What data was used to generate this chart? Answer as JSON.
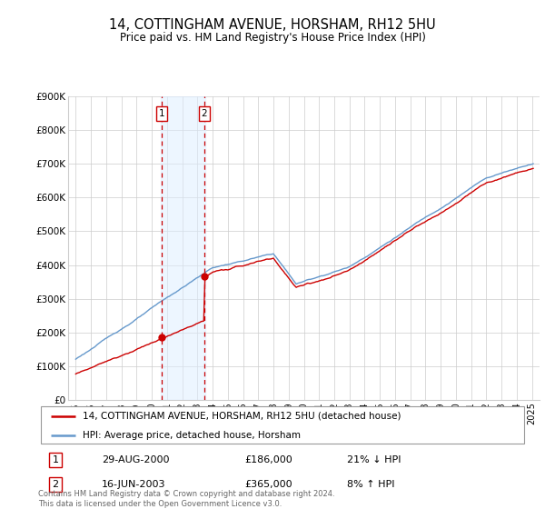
{
  "title": "14, COTTINGHAM AVENUE, HORSHAM, RH12 5HU",
  "subtitle": "Price paid vs. HM Land Registry's House Price Index (HPI)",
  "footer": "Contains HM Land Registry data © Crown copyright and database right 2024.\nThis data is licensed under the Open Government Licence v3.0.",
  "legend_line1": "14, COTTINGHAM AVENUE, HORSHAM, RH12 5HU (detached house)",
  "legend_line2": "HPI: Average price, detached house, Horsham",
  "sale1_label": "1",
  "sale1_date": "29-AUG-2000",
  "sale1_price": "£186,000",
  "sale1_hpi": "21% ↓ HPI",
  "sale2_label": "2",
  "sale2_date": "16-JUN-2003",
  "sale2_price": "£365,000",
  "sale2_hpi": "8% ↑ HPI",
  "sale1_year": 2000.66,
  "sale1_value": 186000,
  "sale2_year": 2003.46,
  "sale2_value": 365000,
  "ylim": [
    0,
    900000
  ],
  "yticks": [
    0,
    100000,
    200000,
    300000,
    400000,
    500000,
    600000,
    700000,
    800000,
    900000
  ],
  "ytick_labels": [
    "£0",
    "£100K",
    "£200K",
    "£300K",
    "£400K",
    "£500K",
    "£600K",
    "£700K",
    "£800K",
    "£900K"
  ],
  "xlim": [
    1994.5,
    2025.5
  ],
  "red_color": "#cc0000",
  "blue_color": "#6699cc",
  "shade_color": "#ddeeff",
  "grid_color": "#cccccc",
  "background_color": "#ffffff"
}
